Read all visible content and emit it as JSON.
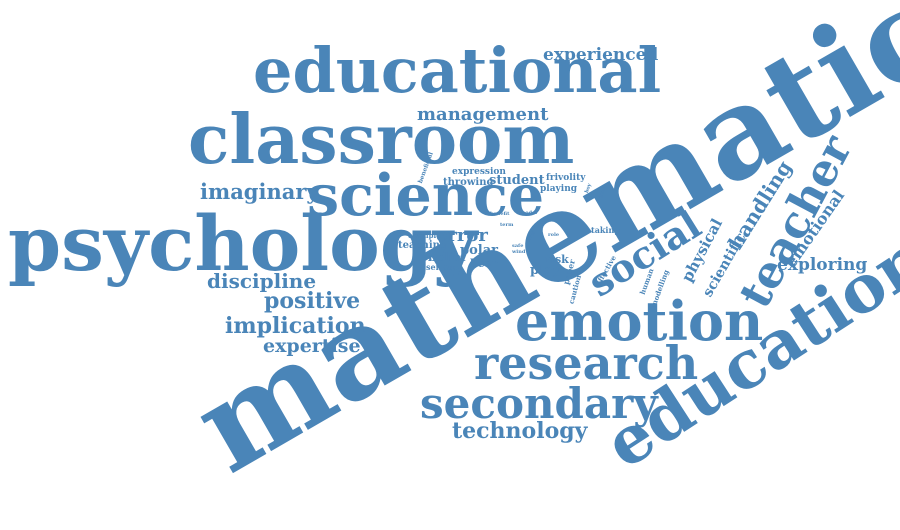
{
  "color": "#4a85b8",
  "words": [
    "mathematic",
    "education",
    "psychology",
    "educational",
    "classroom",
    "science",
    "emotion",
    "research",
    "secondary",
    "teacher",
    "social",
    "technology",
    "imaginary",
    "discipline",
    "positive",
    "implication",
    "expertise",
    "management",
    "experienced",
    "handling",
    "exploring",
    "emotional",
    "physical",
    "scientific",
    "error",
    "student",
    "throwing",
    "frivolity",
    "playing",
    "expression",
    "teaching",
    "belief",
    "polar",
    "bear",
    "serious",
    "risk",
    "play",
    "example",
    "taking",
    "paper",
    "caution",
    "affective",
    "human",
    "modelling",
    "beneficial",
    "benefit",
    "model",
    "term",
    "safe",
    "wind",
    "level",
    "role",
    "boy",
    "time"
  ]
}
